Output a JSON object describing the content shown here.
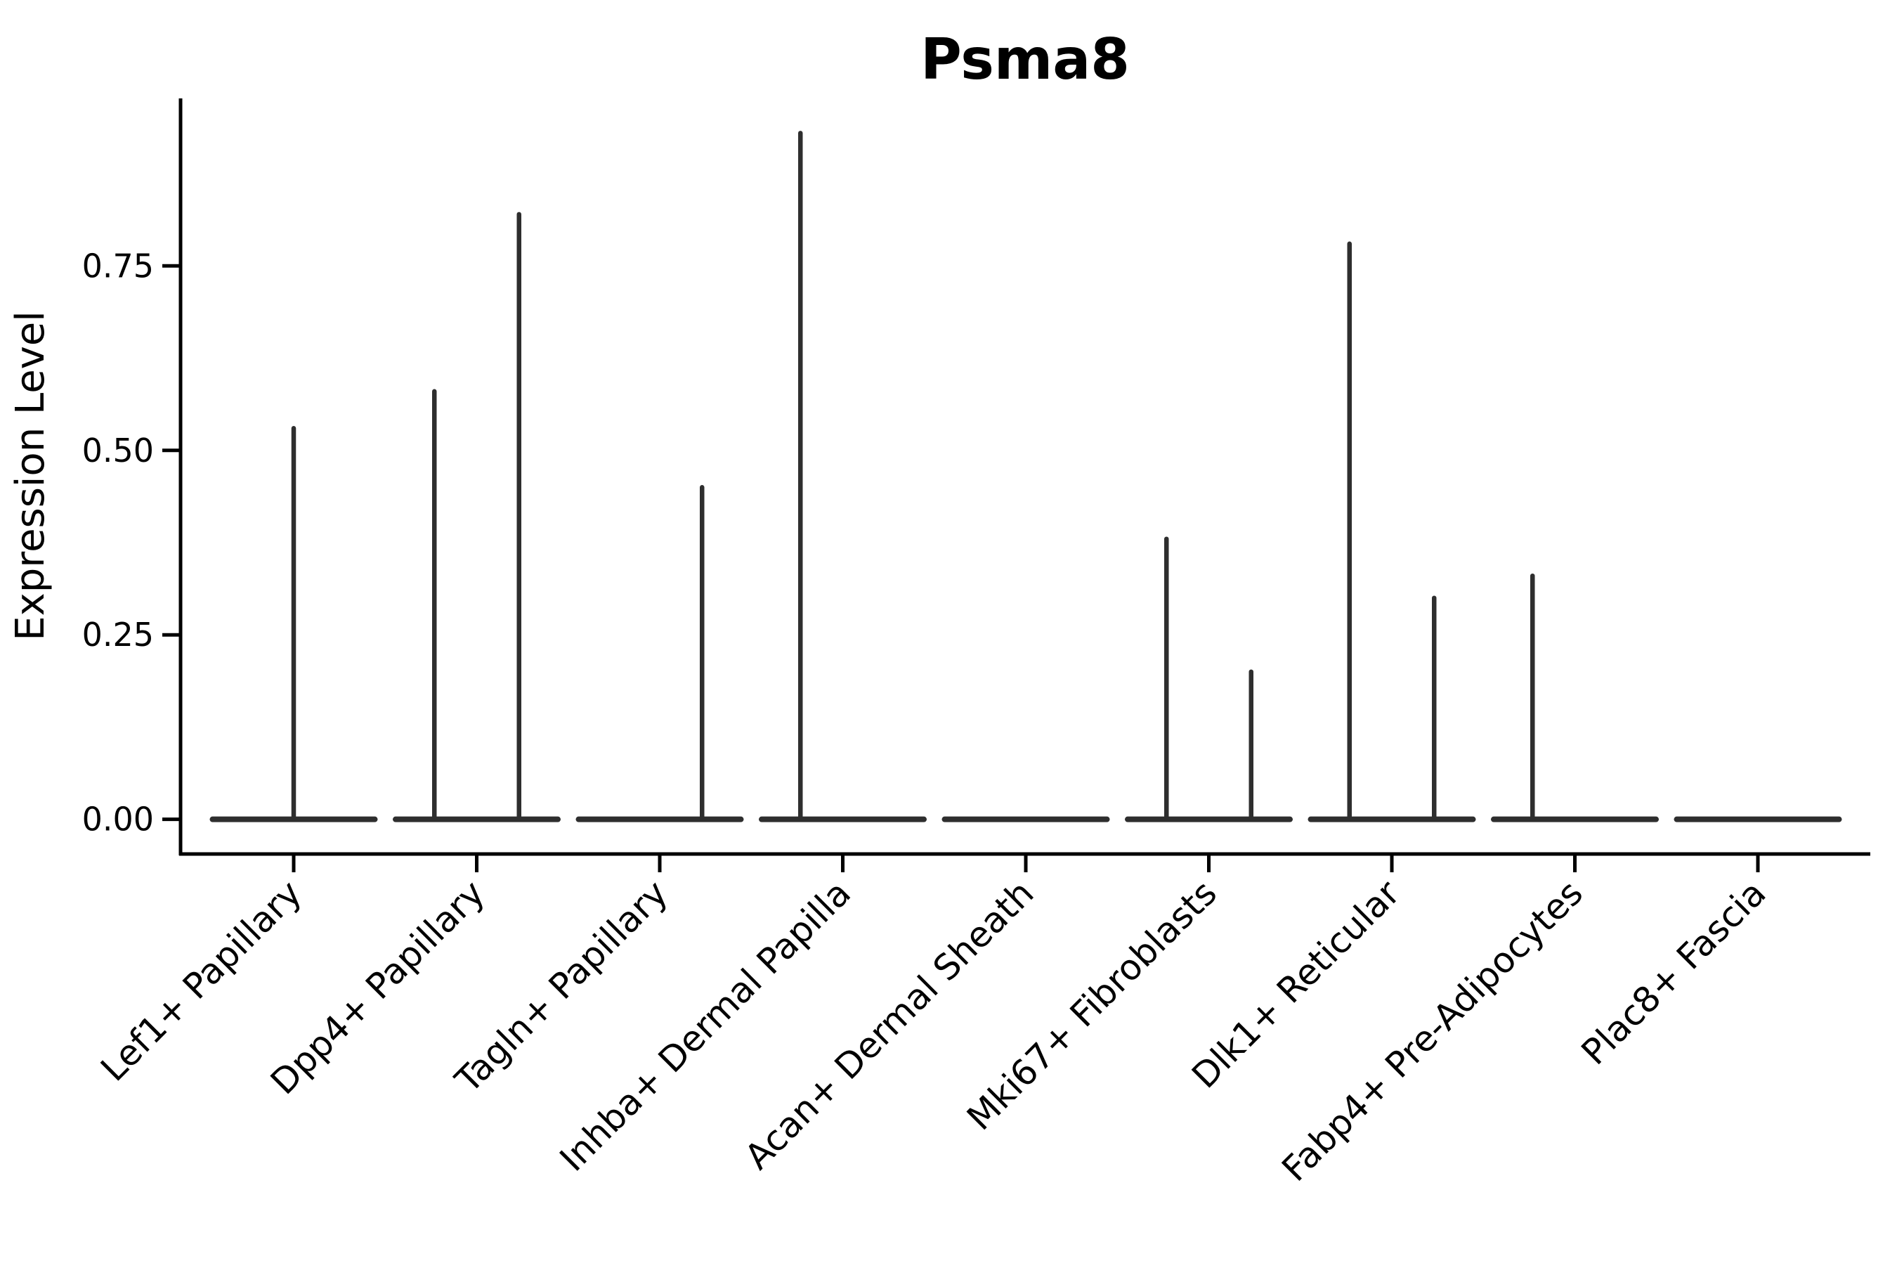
{
  "chart_data": {
    "type": "violin",
    "title": "Psma8",
    "xlabel": "",
    "ylabel": "Expression Level",
    "ylim": [
      -0.047,
      0.977
    ],
    "yticks": [
      {
        "label": "0.00",
        "value": 0.0
      },
      {
        "label": "0.25",
        "value": 0.25
      },
      {
        "label": "0.50",
        "value": 0.5
      },
      {
        "label": "0.75",
        "value": 0.75
      }
    ],
    "grid": false,
    "legend": false,
    "baseline_value": 0.0,
    "categories": [
      "Lef1+ Papillary",
      "Dpp4+ Papillary",
      "Tagln+ Papillary",
      "Inhba+ Dermal Papilla",
      "Acan+ Dermal Sheath",
      "Mki67+ Fibroblasts",
      "Dlk1+ Reticular",
      "Fabp4+ Pre-Adipocytes",
      "Plac8+ Fascia"
    ],
    "series": [
      {
        "category": "Lef1+ Papillary",
        "spikes": [
          {
            "offset": "center",
            "max": 0.53
          }
        ]
      },
      {
        "category": "Dpp4+ Papillary",
        "spikes": [
          {
            "offset": "left",
            "max": 0.58
          },
          {
            "offset": "right",
            "max": 0.82
          }
        ]
      },
      {
        "category": "Tagln+ Papillary",
        "spikes": [
          {
            "offset": "right",
            "max": 0.45
          }
        ]
      },
      {
        "category": "Inhba+ Dermal Papilla",
        "spikes": [
          {
            "offset": "left",
            "max": 0.93
          }
        ]
      },
      {
        "category": "Acan+ Dermal Sheath",
        "spikes": []
      },
      {
        "category": "Mki67+ Fibroblasts",
        "spikes": [
          {
            "offset": "left",
            "max": 0.38
          },
          {
            "offset": "right",
            "max": 0.2
          }
        ]
      },
      {
        "category": "Dlk1+ Reticular",
        "spikes": [
          {
            "offset": "left",
            "max": 0.78
          },
          {
            "offset": "right",
            "max": 0.3
          }
        ]
      },
      {
        "category": "Fabp4+ Pre-Adipocytes",
        "spikes": [
          {
            "offset": "left",
            "max": 0.33
          }
        ]
      },
      {
        "category": "Plac8+ Fascia",
        "spikes": []
      }
    ]
  },
  "style": {
    "violin_color": "#2e2e2e",
    "spine_color": "#000000",
    "text_color": "#000000",
    "background": "#ffffff"
  }
}
